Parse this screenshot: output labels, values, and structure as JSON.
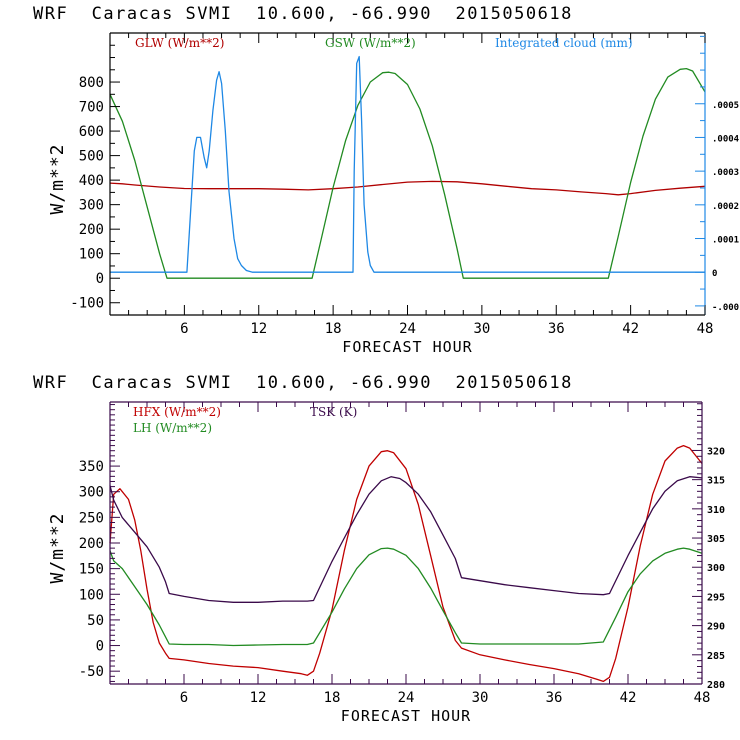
{
  "chart_data": [
    {
      "type": "line",
      "title": "WRF  Caracas SVMI  10.600, -66.990  2015050618",
      "xlabel": "FORECAST HOUR",
      "ylabel": "W/m**2",
      "xlim": [
        0,
        48
      ],
      "ylim": [
        -150,
        1000
      ],
      "xticks": [
        6,
        12,
        18,
        24,
        30,
        36,
        42,
        48
      ],
      "xtick_labels": [
        "6",
        "12",
        "18",
        "24",
        "30",
        "36",
        "42",
        "48"
      ],
      "yticks": [
        -100,
        0,
        100,
        200,
        300,
        400,
        500,
        600,
        700,
        800
      ],
      "ytick_labels": [
        "-100",
        "0",
        "100",
        "200",
        "300",
        "400",
        "500",
        "600",
        "700",
        "800"
      ],
      "y2lim": [
        -0.000127,
        0.00071
      ],
      "y2ticks": [
        -0.0001,
        0,
        0.0001,
        0.0002,
        0.0003,
        0.0004,
        0.0005
      ],
      "y2tick_labels": [
        "-.0001",
        "0",
        ".0001",
        ".0002",
        ".0003",
        ".0004",
        ".0005"
      ],
      "legend": [
        "GLW (W/m**2)",
        "GSW (W/m**2)",
        "Integrated cloud (mm)"
      ],
      "legend_position": "top",
      "grid": false,
      "series": [
        {
          "name": "GLW (W/m**2)",
          "axis": "left",
          "color": "#b00000",
          "x": [
            0,
            1,
            2,
            3,
            4,
            6,
            8,
            10,
            12,
            14,
            16,
            18,
            20,
            22,
            24,
            26,
            28,
            30,
            32,
            34,
            36,
            38,
            40,
            41,
            42,
            44,
            46,
            48
          ],
          "y": [
            388,
            385,
            380,
            376,
            372,
            366,
            365,
            365,
            365,
            363,
            360,
            365,
            372,
            382,
            392,
            395,
            393,
            385,
            375,
            365,
            360,
            352,
            345,
            340,
            345,
            358,
            367,
            375
          ]
        },
        {
          "name": "GSW (W/m**2)",
          "axis": "left",
          "color": "#228b22",
          "x": [
            0,
            1,
            2,
            3,
            4,
            4.6,
            16.3,
            17,
            18,
            19,
            20,
            21,
            22,
            22.5,
            23,
            24,
            25,
            26,
            27,
            28,
            28.5,
            40.2,
            41,
            42,
            43,
            44,
            45,
            46,
            46.5,
            47,
            48
          ],
          "y": [
            750,
            640,
            480,
            290,
            100,
            0,
            0,
            150,
            370,
            560,
            705,
            800,
            838,
            840,
            835,
            790,
            690,
            540,
            340,
            120,
            0,
            0,
            170,
            390,
            580,
            730,
            820,
            852,
            855,
            845,
            760
          ]
        },
        {
          "name": "Integrated cloud (mm)",
          "axis": "right",
          "color": "#1e88e5",
          "x": [
            0,
            6.2,
            6.5,
            6.8,
            7,
            7.3,
            7.6,
            7.8,
            8.0,
            8.3,
            8.6,
            8.8,
            9.0,
            9.3,
            9.6,
            10.0,
            10.3,
            10.6,
            11.0,
            11.5,
            19.6,
            19.7,
            19.9,
            20.1,
            20.3,
            20.5,
            20.8,
            21.0,
            21.3,
            48
          ],
          "y": [
            0,
            0,
            0.00018,
            0.00036,
            0.0004,
            0.0004,
            0.00034,
            0.00031,
            0.00036,
            0.00048,
            0.00057,
            0.000595,
            0.00056,
            0.00042,
            0.00024,
            0.0001,
            4e-05,
            2e-05,
            5e-06,
            0,
            0,
            0.0003,
            0.00062,
            0.00064,
            0.00045,
            0.0002,
            6e-05,
            2e-05,
            0,
            0
          ]
        }
      ]
    },
    {
      "type": "line",
      "title": "WRF  Caracas SVMI  10.600, -66.990  2015050618",
      "xlabel": "FORECAST HOUR",
      "ylabel": "W/m**2",
      "xlim": [
        0,
        48
      ],
      "ylim": [
        -75,
        475
      ],
      "xticks": [
        6,
        12,
        18,
        24,
        30,
        36,
        42,
        48
      ],
      "xtick_labels": [
        "6",
        "12",
        "18",
        "24",
        "30",
        "36",
        "42",
        "48"
      ],
      "yticks": [
        -50,
        0,
        50,
        100,
        150,
        200,
        250,
        300,
        350
      ],
      "ytick_labels": [
        "-50",
        "0",
        "50",
        "100",
        "150",
        "200",
        "250",
        "300",
        "350"
      ],
      "y2lim": [
        280,
        328.3
      ],
      "y2ticks": [
        280,
        285,
        290,
        295,
        300,
        305,
        310,
        315,
        320
      ],
      "y2tick_labels": [
        "280",
        "285",
        "290",
        "295",
        "300",
        "305",
        "310",
        "315",
        "320"
      ],
      "legend": [
        "HFX (W/m**2)",
        "LH  (W/m**2)",
        "TSK (K)"
      ],
      "legend_position": "top-left",
      "grid": false,
      "series": [
        {
          "name": "HFX (W/m**2)",
          "axis": "left",
          "color": "#c00000",
          "x": [
            0,
            0.3,
            0.8,
            1.5,
            2,
            2.5,
            3,
            3.5,
            4,
            4.5,
            4.8,
            6,
            8,
            10,
            12,
            14,
            15.5,
            16,
            16.5,
            17,
            18,
            19,
            20,
            21,
            22,
            22.5,
            23,
            24,
            25,
            26,
            27,
            28,
            28.5,
            30,
            32,
            34,
            36,
            38,
            39.5,
            40,
            40.5,
            41,
            42,
            43,
            44,
            45,
            46,
            46.5,
            47,
            48
          ],
          "y": [
            200,
            295,
            306,
            285,
            245,
            185,
            110,
            45,
            5,
            -15,
            -25,
            -28,
            -35,
            -40,
            -43,
            -50,
            -55,
            -58,
            -50,
            -15,
            70,
            185,
            285,
            350,
            378,
            380,
            376,
            345,
            275,
            175,
            75,
            10,
            -5,
            -18,
            -28,
            -37,
            -45,
            -55,
            -66,
            -70,
            -62,
            -25,
            75,
            195,
            295,
            360,
            385,
            390,
            385,
            355
          ]
        },
        {
          "name": "LH  (W/m**2)",
          "axis": "left",
          "color": "#228b22",
          "x": [
            0,
            0.3,
            1,
            2,
            3,
            4,
            4.8,
            6,
            8,
            10,
            12,
            14,
            16,
            16.5,
            18,
            19,
            20,
            21,
            22,
            22.5,
            23,
            24,
            25,
            26,
            27,
            28,
            28.5,
            30,
            34,
            38,
            40,
            41,
            42,
            43,
            44,
            45,
            46,
            46.5,
            47,
            48
          ],
          "y": [
            185,
            165,
            150,
            115,
            80,
            40,
            3,
            2,
            2,
            0,
            1,
            2,
            2,
            5,
            65,
            110,
            150,
            177,
            189,
            190,
            188,
            176,
            150,
            112,
            68,
            25,
            5,
            3,
            3,
            3,
            7,
            55,
            105,
            140,
            165,
            180,
            188,
            190,
            188,
            180
          ]
        },
        {
          "name": "TSK (K)",
          "axis": "right",
          "color": "#3a0a4a",
          "x": [
            0,
            0.3,
            1,
            2,
            3,
            4,
            4.5,
            4.8,
            6,
            8,
            10,
            12,
            14,
            16,
            16.5,
            18,
            19,
            20,
            21,
            22,
            22.8,
            23.5,
            24,
            25,
            26,
            27,
            28,
            28.5,
            30,
            32,
            34,
            36,
            38,
            40,
            40.5,
            42,
            43,
            44,
            45,
            46,
            47,
            48
          ],
          "y": [
            314,
            311.5,
            308.5,
            306,
            303.5,
            300,
            297.5,
            295.5,
            295,
            294.3,
            294,
            294,
            294.2,
            294.2,
            294.3,
            301,
            305,
            309,
            312.5,
            314.8,
            315.5,
            315.2,
            314.5,
            312.5,
            309.5,
            305.5,
            301.5,
            298.2,
            297.7,
            297,
            296.5,
            296,
            295.5,
            295.3,
            295.5,
            302,
            306,
            310,
            313,
            314.8,
            315.5,
            315.3
          ]
        }
      ]
    }
  ]
}
